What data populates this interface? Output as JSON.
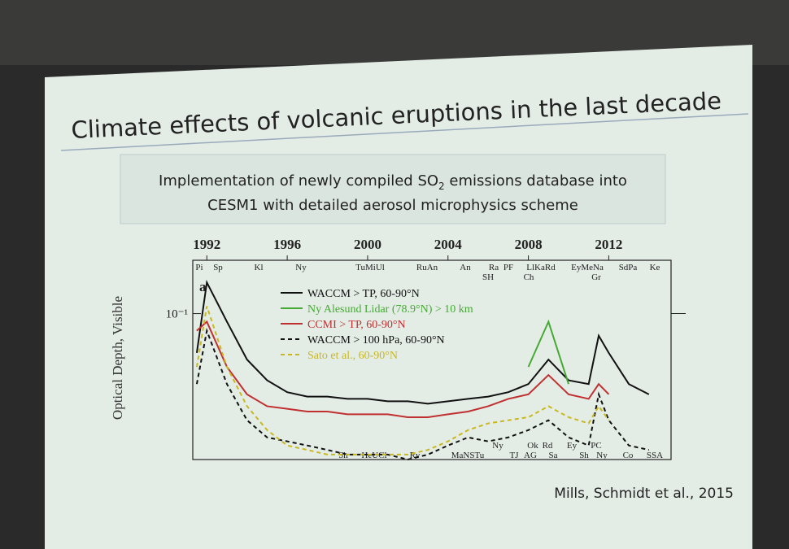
{
  "slide": {
    "title": "Climate effects of volcanic eruptions in the last decade",
    "subtitle": {
      "line1_before": "Implementation of newly compiled SO",
      "line1_sub": "2",
      "line1_after": " emissions database into",
      "line2": "CESM1 with detailed aerosol microphysics scheme"
    },
    "citation": "Mills, Schmidt et al., 2015"
  },
  "chart_data": {
    "type": "line",
    "panel_label": "a",
    "y_label": "Optical Depth, Visible",
    "log_y": true,
    "xlim": [
      1991.3,
      2015.1
    ],
    "xticks": [
      1992,
      1996,
      2000,
      2004,
      2008,
      2012
    ],
    "ylim": [
      0.015,
      0.2
    ],
    "yticks": [
      {
        "value": 0.1,
        "label": "10⁻¹"
      }
    ],
    "top_labels": [
      "Pi",
      "Sp",
      "Kl",
      "Ny",
      "TuMiUl",
      "RuAn",
      "An",
      "Ra",
      "PF",
      "LlKaRd",
      "EyMeNa",
      "SdPa",
      "Ke",
      "SH",
      "Ch",
      "Gr"
    ],
    "bottom_labels": [
      "Sh",
      "HeUCl",
      "Rv",
      "MaNSTu",
      "Ny",
      "TJ",
      "AG",
      "Ok",
      "Rd",
      "Sa",
      "Ey",
      "Sh",
      "PC",
      "Ny",
      "Co",
      "SSA"
    ],
    "x": [
      1991.5,
      1992,
      1993,
      1994,
      1995,
      1996,
      1997,
      1998,
      1999,
      2000,
      2001,
      2002,
      2003,
      2004,
      2005,
      2006,
      2007,
      2008,
      2009,
      2010,
      2011,
      2011.5,
      2012,
      2013,
      2014
    ],
    "series": [
      {
        "name": "WACCM > TP, 60-90°N",
        "color": "#111111",
        "style": "solid",
        "values": [
          0.06,
          0.15,
          0.09,
          0.055,
          0.042,
          0.036,
          0.034,
          0.034,
          0.033,
          0.033,
          0.032,
          0.032,
          0.031,
          0.032,
          0.033,
          0.034,
          0.036,
          0.04,
          0.055,
          0.042,
          0.04,
          0.075,
          0.06,
          0.04,
          0.035
        ]
      },
      {
        "name": "Ny Alesund Lidar (78.9°N) > 10 km",
        "color": "#44aa33",
        "style": "solid",
        "values": [
          null,
          null,
          null,
          null,
          null,
          null,
          null,
          null,
          null,
          null,
          null,
          null,
          null,
          null,
          null,
          null,
          null,
          0.05,
          0.09,
          0.04,
          null,
          null,
          null,
          null,
          null
        ]
      },
      {
        "name": "CCMI > TP, 60-90°N",
        "color": "#c03030",
        "style": "solid",
        "values": [
          0.08,
          0.09,
          0.05,
          0.035,
          0.03,
          0.029,
          0.028,
          0.028,
          0.027,
          0.027,
          0.027,
          0.026,
          0.026,
          0.027,
          0.028,
          0.03,
          0.033,
          0.035,
          0.045,
          0.035,
          0.033,
          0.04,
          0.035,
          null,
          null
        ]
      },
      {
        "name": "WACCM > 100 hPa, 60-90°N",
        "color": "#111111",
        "style": "dashed",
        "values": [
          0.04,
          0.08,
          0.04,
          0.025,
          0.02,
          0.019,
          0.018,
          0.017,
          0.016,
          0.016,
          0.016,
          0.015,
          0.016,
          0.018,
          0.02,
          0.019,
          0.02,
          0.022,
          0.025,
          0.02,
          0.018,
          0.035,
          0.025,
          0.018,
          0.017
        ]
      },
      {
        "name": "Sato et al., 60-90°N",
        "color": "#c8b820",
        "style": "dashed",
        "values": [
          0.05,
          0.11,
          0.05,
          0.03,
          0.022,
          0.018,
          0.017,
          0.016,
          0.016,
          0.016,
          0.016,
          0.016,
          0.017,
          0.019,
          0.022,
          0.024,
          0.025,
          0.026,
          0.03,
          0.026,
          0.024,
          0.03,
          0.025,
          null,
          null
        ]
      }
    ]
  }
}
